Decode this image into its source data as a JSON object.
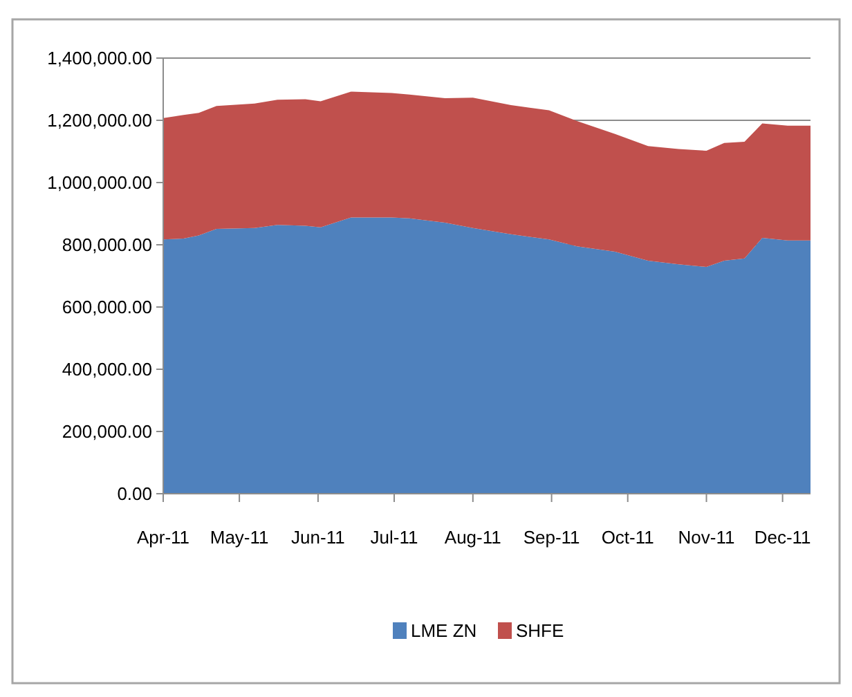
{
  "chart_data": {
    "type": "area",
    "stacked": true,
    "x": [
      "2011-04-01",
      "2011-04-09",
      "2011-04-15",
      "2011-04-22",
      "2011-05-07",
      "2011-05-16",
      "2011-05-27",
      "2011-06-02",
      "2011-06-14",
      "2011-06-30",
      "2011-07-07",
      "2011-07-21",
      "2011-08-01",
      "2011-08-16",
      "2011-08-31",
      "2011-09-11",
      "2011-09-26",
      "2011-10-09",
      "2011-10-21",
      "2011-11-01",
      "2011-11-08",
      "2011-11-16",
      "2011-11-23",
      "2011-12-03",
      "2011-12-12"
    ],
    "series": [
      {
        "name": "LME ZN",
        "color": "#4f81bd",
        "values": [
          817000,
          820000,
          830000,
          851000,
          854000,
          864000,
          861000,
          856000,
          888000,
          888000,
          885000,
          871000,
          854000,
          834000,
          817000,
          795000,
          778000,
          749000,
          737000,
          729000,
          749000,
          756000,
          822000,
          814000,
          814000
        ]
      },
      {
        "name": "SHFE",
        "color": "#c0504d",
        "values": [
          390000,
          397000,
          394000,
          395000,
          400000,
          402000,
          407000,
          405000,
          404000,
          400000,
          398000,
          400000,
          419000,
          415000,
          415000,
          403000,
          378000,
          368000,
          371000,
          373000,
          378000,
          375000,
          368000,
          369000,
          369000
        ]
      }
    ],
    "xlim": [
      "2011-04-01",
      "2011-12-12"
    ],
    "xticks": [
      {
        "value": "2011-04-01",
        "label": "Apr-11"
      },
      {
        "value": "2011-05-01",
        "label": "May-11"
      },
      {
        "value": "2011-06-01",
        "label": "Jun-11"
      },
      {
        "value": "2011-07-01",
        "label": "Jul-11"
      },
      {
        "value": "2011-08-01",
        "label": "Aug-11"
      },
      {
        "value": "2011-09-01",
        "label": "Sep-11"
      },
      {
        "value": "2011-10-01",
        "label": "Oct-11"
      },
      {
        "value": "2011-11-01",
        "label": "Nov-11"
      },
      {
        "value": "2011-12-01",
        "label": "Dec-11"
      }
    ],
    "ylim": [
      0,
      1400000
    ],
    "yticks": [
      {
        "value": 0,
        "label": "0.00"
      },
      {
        "value": 200000,
        "label": "200,000.00"
      },
      {
        "value": 400000,
        "label": "400,000.00"
      },
      {
        "value": 600000,
        "label": "600,000.00"
      },
      {
        "value": 800000,
        "label": "800,000.00"
      },
      {
        "value": 1000000,
        "label": "1,000,000.00"
      },
      {
        "value": 1200000,
        "label": "1,200,000.00"
      },
      {
        "value": 1400000,
        "label": "1,400,000.00"
      }
    ],
    "grid": "y",
    "legend": "bottom"
  }
}
